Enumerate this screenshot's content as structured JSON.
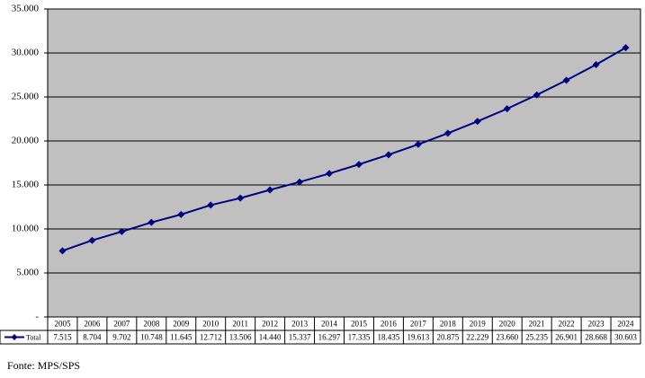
{
  "chart_data": {
    "type": "line",
    "categories": [
      "2005",
      "2006",
      "2007",
      "2008",
      "2009",
      "2010",
      "2011",
      "2012",
      "2013",
      "2014",
      "2015",
      "2016",
      "2017",
      "2018",
      "2019",
      "2020",
      "2021",
      "2022",
      "2023",
      "2024"
    ],
    "series": [
      {
        "name": "Total",
        "color": "#000080",
        "values": [
          7515,
          8704,
          9702,
          10748,
          11645,
          12712,
          13506,
          14440,
          15337,
          16297,
          17335,
          18435,
          19613,
          20875,
          22229,
          23660,
          25235,
          26901,
          28668,
          30603
        ],
        "value_labels": [
          "7.515",
          "8.704",
          "9.702",
          "10.748",
          "11.645",
          "12.712",
          "13.506",
          "14.440",
          "15.337",
          "16.297",
          "17.335",
          "18.435",
          "19.613",
          "20.875",
          "22.229",
          "23.660",
          "25.235",
          "26.901",
          "28.668",
          "30.603"
        ]
      }
    ],
    "ylim": [
      0,
      35000
    ],
    "yticks": [
      {
        "value": 0,
        "label": "-"
      },
      {
        "value": 5000,
        "label": "5.000"
      },
      {
        "value": 10000,
        "label": "10.000"
      },
      {
        "value": 15000,
        "label": "15.000"
      },
      {
        "value": 20000,
        "label": "20.000"
      },
      {
        "value": 25000,
        "label": "25.000"
      },
      {
        "value": 30000,
        "label": "30.000"
      },
      {
        "value": 35000,
        "label": "35.000"
      }
    ],
    "grid": true,
    "plot_background": "#c0c0c0",
    "source": "Fonte: MPS/SPS"
  }
}
